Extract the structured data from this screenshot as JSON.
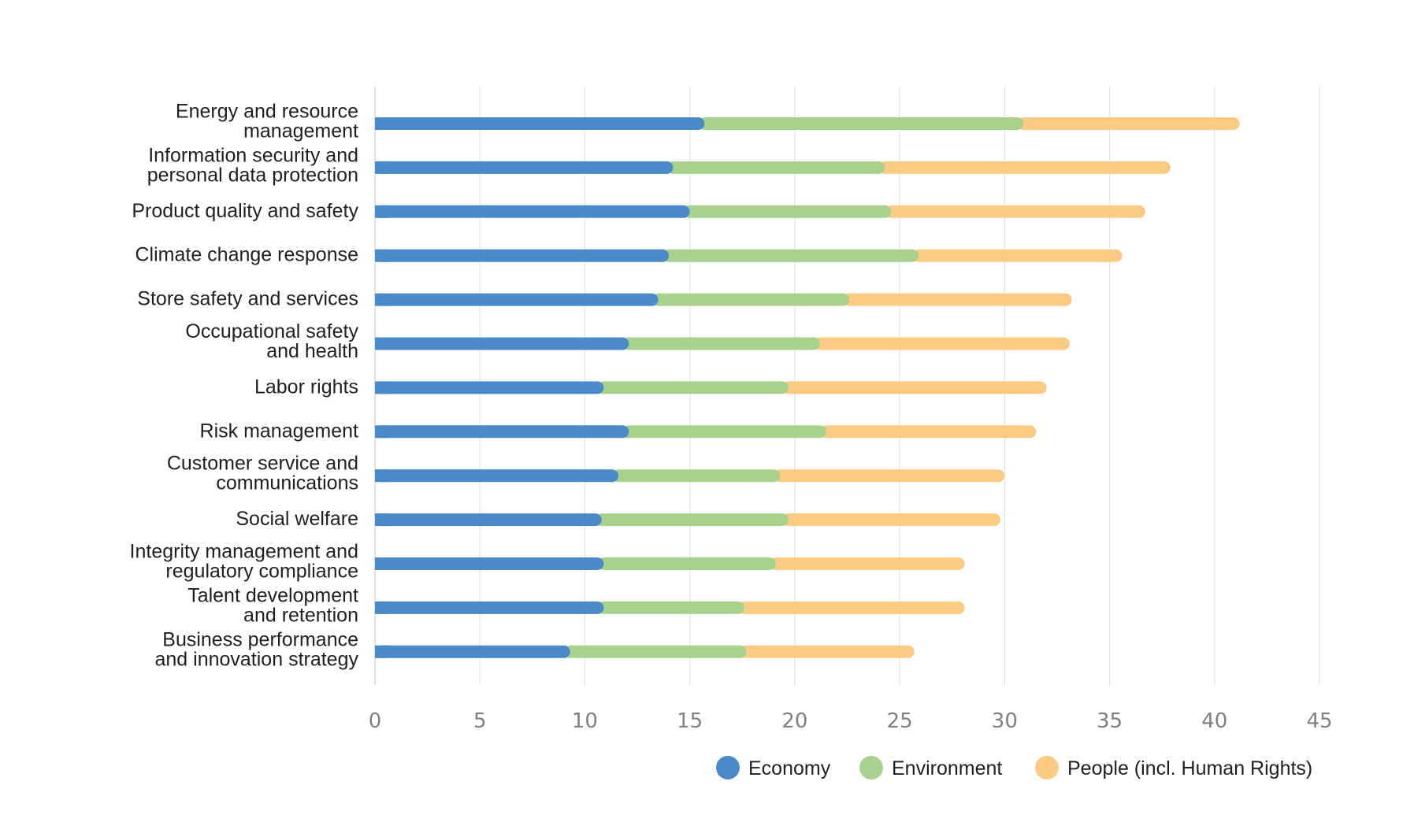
{
  "chart_data": {
    "type": "bar",
    "orientation": "horizontal",
    "stacked": true,
    "categories": [
      [
        "Energy and resource",
        "management"
      ],
      [
        "Information security and",
        "personal data protection"
      ],
      [
        "Product quality and safety"
      ],
      [
        "Climate change response"
      ],
      [
        "Store safety and services"
      ],
      [
        "Occupational safety",
        "and health"
      ],
      [
        "Labor rights"
      ],
      [
        "Risk management"
      ],
      [
        "Customer service and",
        "communications"
      ],
      [
        "Social welfare"
      ],
      [
        "Integrity management and",
        "regulatory compliance"
      ],
      [
        "Talent development",
        "and retention"
      ],
      [
        "Business performance",
        "and innovation strategy"
      ]
    ],
    "series": [
      {
        "name": "Economy",
        "color": "#4a8ac9",
        "values": [
          15.7,
          14.2,
          15.0,
          14.0,
          13.5,
          12.1,
          10.9,
          12.1,
          11.6,
          10.8,
          10.9,
          10.9,
          9.3
        ]
      },
      {
        "name": "Environment",
        "color": "#a9d18e",
        "values": [
          15.2,
          10.1,
          9.6,
          11.9,
          9.1,
          9.1,
          8.8,
          9.4,
          7.7,
          8.9,
          8.2,
          6.7,
          8.4
        ]
      },
      {
        "name": "People (incl. Human Rights)",
        "color": "#fbcb84",
        "values": [
          10.3,
          13.6,
          12.1,
          9.7,
          10.6,
          11.9,
          12.3,
          10.0,
          10.7,
          10.1,
          9.0,
          10.5,
          8.0
        ]
      }
    ],
    "xlim": [
      0,
      45
    ],
    "xticks": [
      0,
      5,
      10,
      15,
      20,
      25,
      30,
      35,
      40,
      45
    ],
    "grid": "vertical",
    "legend": "bottom-right",
    "title": "",
    "xlabel": "",
    "ylabel": ""
  }
}
